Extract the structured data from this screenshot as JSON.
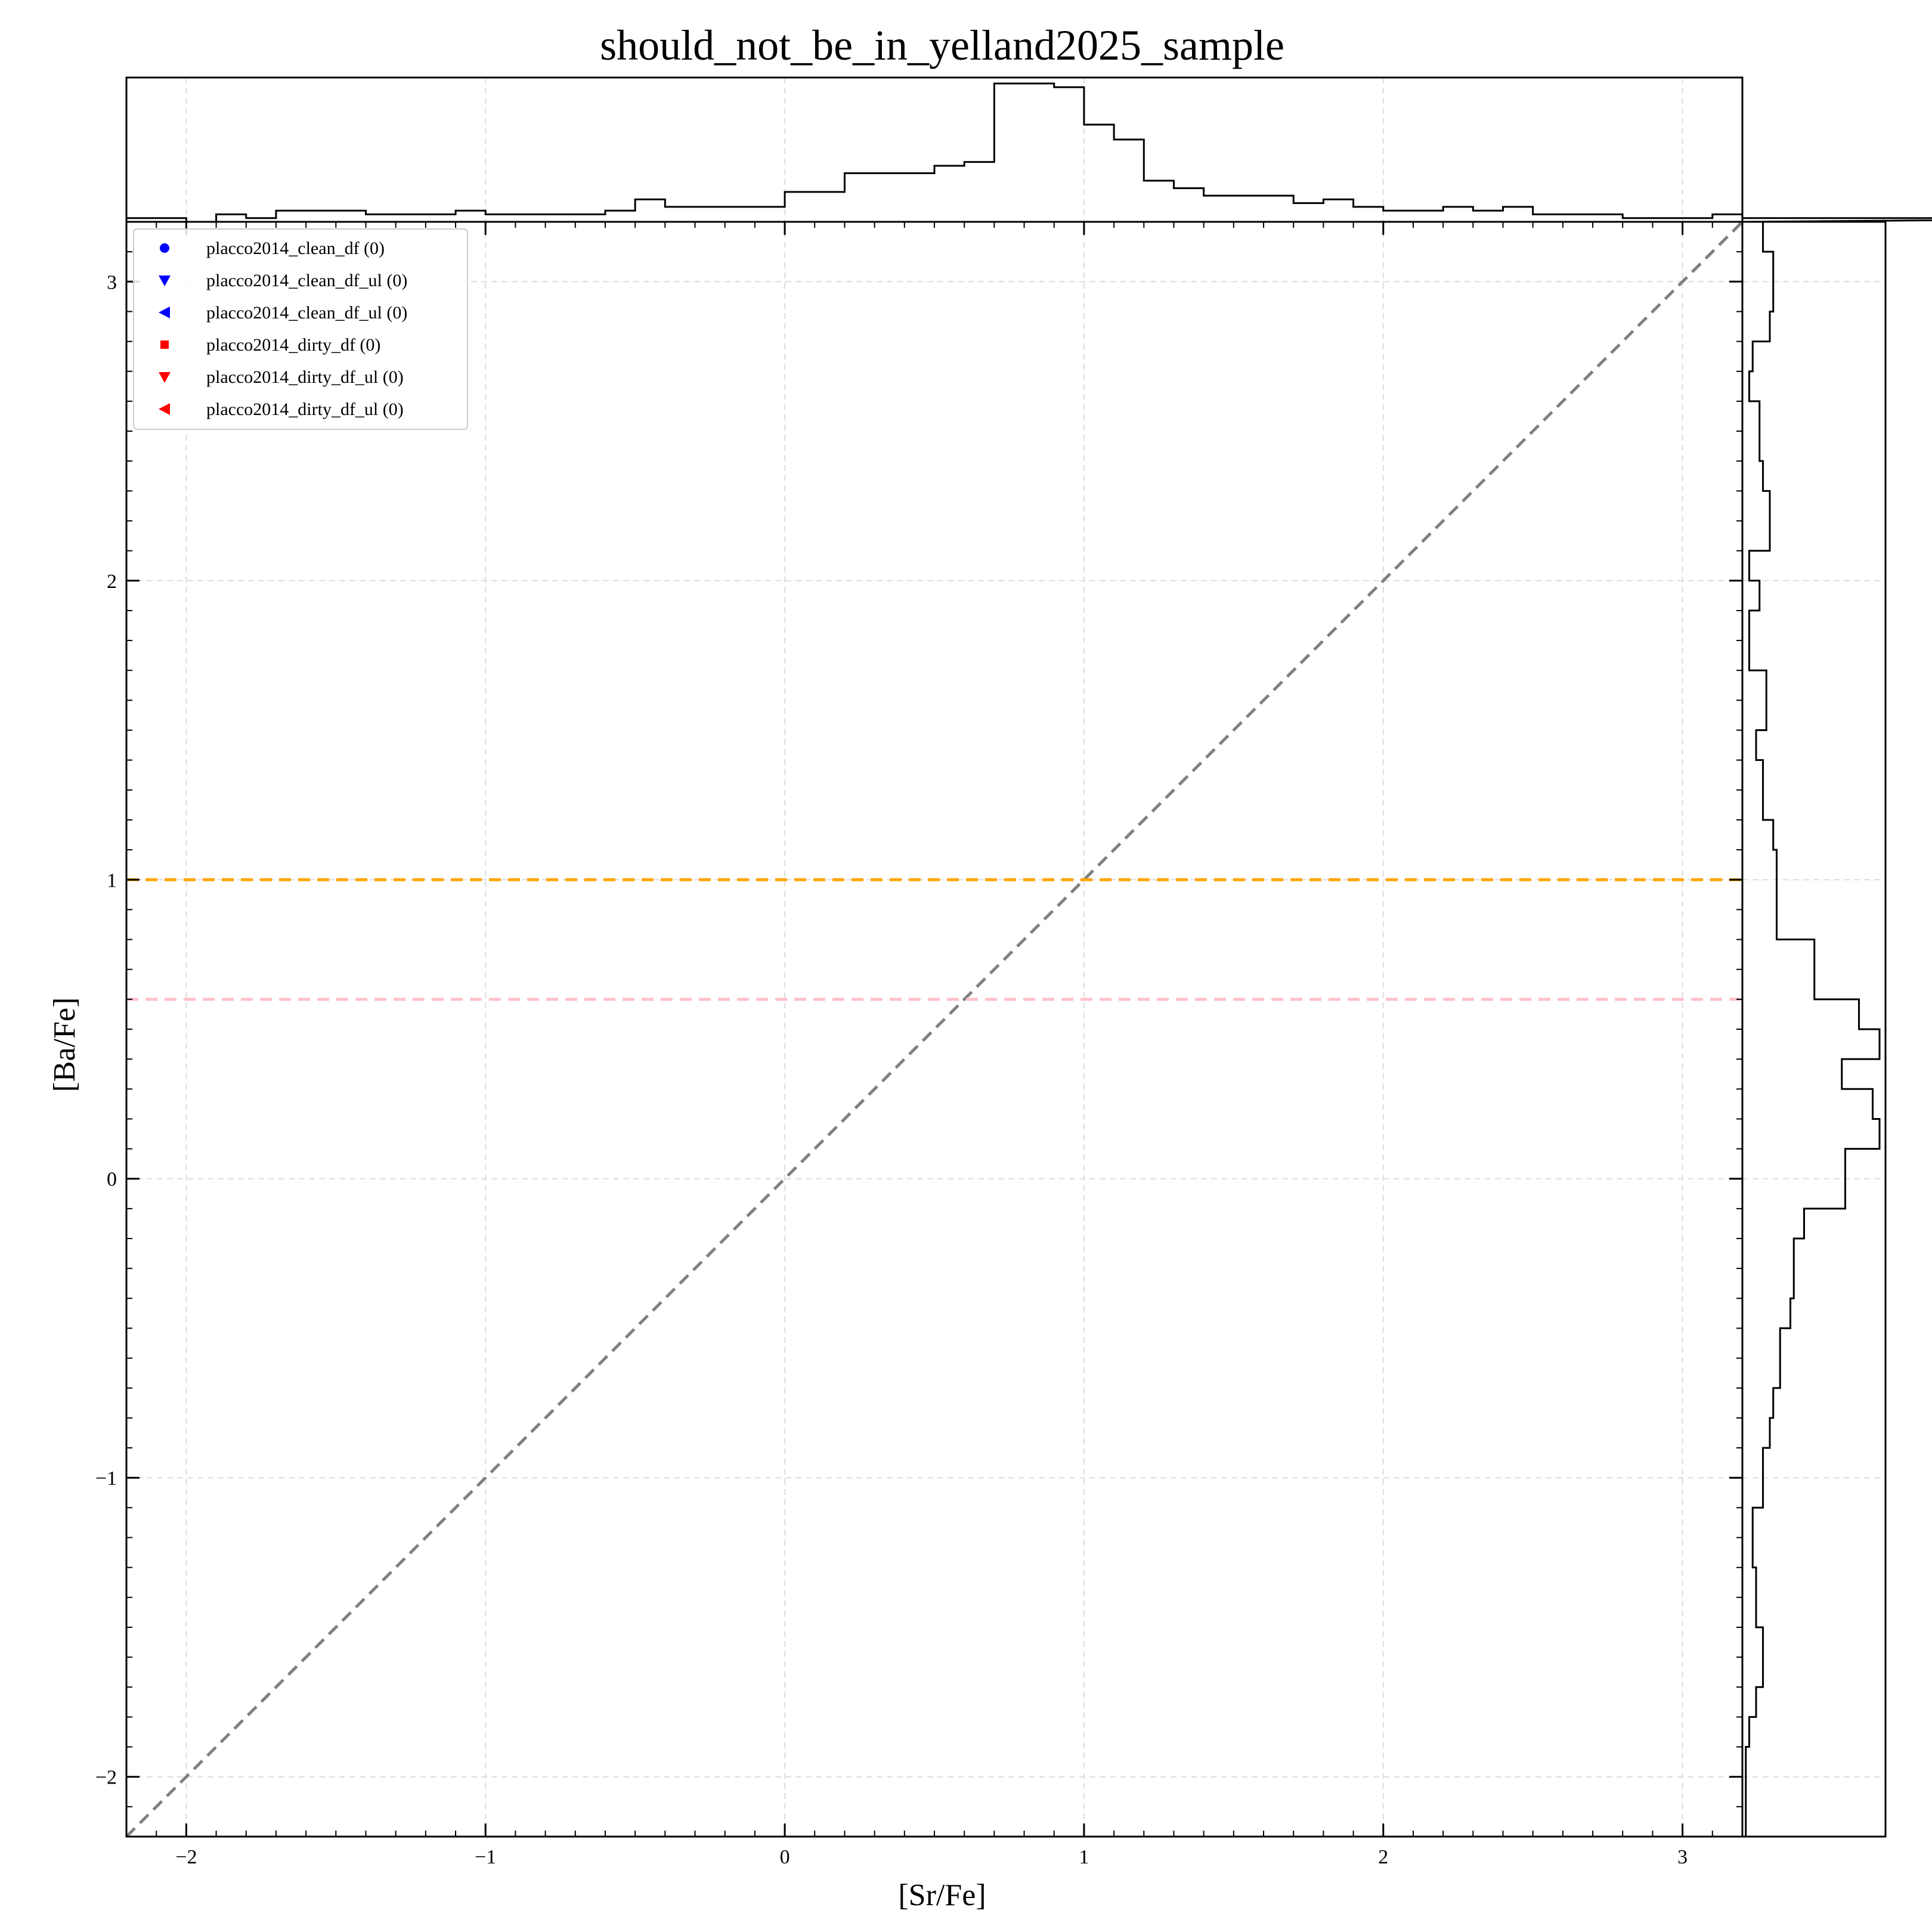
{
  "chart_data": {
    "type": "scatter",
    "title": "should_not_be_in_yelland2025_sample",
    "xlabel": "[Sr/Fe]",
    "ylabel": "[Ba/Fe]",
    "xlim": [
      -2.2,
      3.2
    ],
    "ylim": [
      -2.2,
      3.2
    ],
    "xticks": [
      -2,
      -1,
      0,
      1,
      2,
      3
    ],
    "yticks": [
      -2,
      -1,
      0,
      1,
      2,
      3
    ],
    "xtick_labels": [
      "−2",
      "−1",
      "0",
      "1",
      "2",
      "3"
    ],
    "ytick_labels": [
      "−2",
      "−1",
      "0",
      "1",
      "2",
      "3"
    ],
    "grid": true,
    "legend_placement": "top-left",
    "series": [
      {
        "name": "placco2014_clean_df (0)",
        "marker": "circle",
        "color": "#0000ff",
        "x": [],
        "y": []
      },
      {
        "name": "placco2014_clean_df_ul (0)",
        "marker": "triangle-down",
        "color": "#0000ff",
        "x": [],
        "y": []
      },
      {
        "name": "placco2014_clean_df_ul (0)",
        "marker": "triangle-left",
        "color": "#0000ff",
        "x": [],
        "y": []
      },
      {
        "name": "placco2014_dirty_df (0)",
        "marker": "square",
        "color": "#ff0000",
        "x": [],
        "y": []
      },
      {
        "name": "placco2014_dirty_df_ul (0)",
        "marker": "triangle-down",
        "color": "#ff0000",
        "x": [],
        "y": []
      },
      {
        "name": "placco2014_dirty_df_ul (0)",
        "marker": "triangle-left",
        "color": "#ff0000",
        "x": [],
        "y": []
      }
    ],
    "reference_lines": [
      {
        "kind": "diagonal",
        "slope": 1,
        "intercept": 0,
        "color": "#808080",
        "style": "dashed"
      },
      {
        "kind": "horizontal",
        "y": 1.0,
        "color": "#ffa500",
        "style": "dashed"
      },
      {
        "kind": "horizontal",
        "y": 0.6,
        "color": "#ffc0cb",
        "style": "dashed"
      }
    ],
    "top_histogram": {
      "variable": "[Sr/Fe]",
      "bin_width": 0.1,
      "bin_start": -2.2,
      "counts": [
        1,
        1,
        0,
        2,
        1,
        3,
        3,
        3,
        2,
        2,
        2,
        3,
        2,
        2,
        2,
        2,
        3,
        6,
        4,
        4,
        4,
        4,
        8,
        8,
        13,
        13,
        13,
        15,
        16,
        37,
        37,
        36,
        26,
        22,
        11,
        9,
        7,
        7,
        7,
        5,
        6,
        4,
        3,
        3,
        4,
        3,
        4,
        2,
        2,
        2,
        1,
        1,
        1,
        2,
        1,
        1,
        1,
        1,
        1,
        1,
        1,
        1,
        1,
        1,
        1,
        1,
        1,
        1,
        1,
        1
      ]
    },
    "right_histogram": {
      "variable": "[Ba/Fe]",
      "bin_width": 0.1,
      "bin_start": -2.2,
      "counts": [
        1,
        1,
        1,
        2,
        4,
        6,
        6,
        4,
        4,
        3,
        3,
        6,
        6,
        8,
        9,
        11,
        11,
        14,
        15,
        15,
        18,
        30,
        30,
        40,
        38,
        29,
        40,
        34,
        21,
        21,
        10,
        10,
        10,
        9,
        6,
        6,
        4,
        7,
        7,
        2,
        2,
        5,
        2,
        8,
        8,
        6,
        5,
        5,
        2,
        3,
        8,
        9,
        9,
        6,
        6,
        8,
        7,
        7,
        6,
        6,
        2,
        5,
        5,
        5,
        3,
        3,
        3,
        3,
        3,
        2,
        2,
        2,
        3,
        3,
        2,
        2,
        2,
        2,
        1,
        1,
        1,
        1,
        1,
        1,
        1,
        1,
        1,
        1,
        1,
        1,
        1,
        1,
        1,
        1,
        1,
        1,
        1,
        1,
        1,
        1,
        1,
        1,
        1,
        1
      ]
    }
  }
}
